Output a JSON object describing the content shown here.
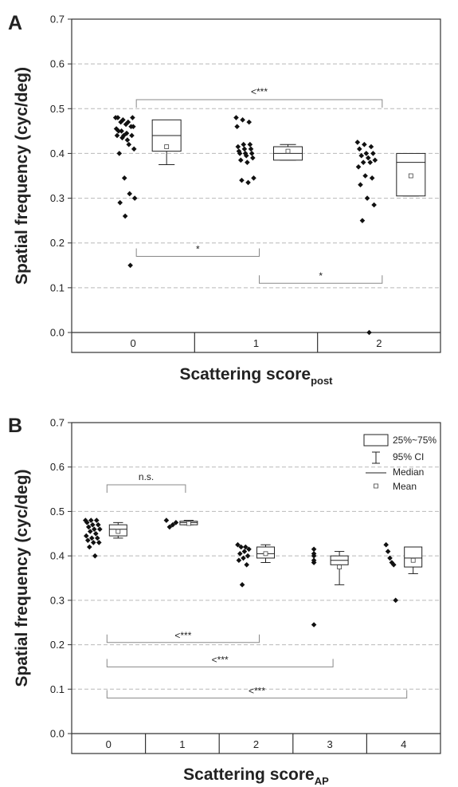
{
  "chart_data": [
    {
      "type": "scatter",
      "panel_label": "A",
      "ylabel": "Spatial frequency (cyc/deg)",
      "xlabel": "Scattering score",
      "xlabel_sub": "post",
      "ylim": [
        0,
        0.7
      ],
      "yticks": [
        "0.0",
        "0.1",
        "0.2",
        "0.3",
        "0.4",
        "0.5",
        "0.6",
        "0.7"
      ],
      "categories": [
        "0",
        "1",
        "2"
      ],
      "grid": "dashed horizontal",
      "groups": [
        {
          "category": "0",
          "points": [
            0.48,
            0.47,
            0.465,
            0.46,
            0.455,
            0.45,
            0.445,
            0.44,
            0.44,
            0.435,
            0.43,
            0.48,
            0.48,
            0.475,
            0.47,
            0.46,
            0.45,
            0.44,
            0.42,
            0.41,
            0.4,
            0.345,
            0.31,
            0.3,
            0.29,
            0.26,
            0.15
          ],
          "box": {
            "q1": 0.405,
            "q3": 0.475,
            "median": 0.44,
            "mean": 0.415,
            "ci_low": 0.375,
            "ci_high": 0.455
          }
        },
        {
          "category": "1",
          "points": [
            0.48,
            0.475,
            0.47,
            0.46,
            0.42,
            0.42,
            0.415,
            0.41,
            0.41,
            0.405,
            0.4,
            0.4,
            0.4,
            0.395,
            0.39,
            0.385,
            0.38,
            0.345,
            0.34,
            0.335
          ],
          "box": {
            "q1": 0.385,
            "q3": 0.415,
            "median": 0.4,
            "mean": 0.405,
            "ci_low": 0.385,
            "ci_high": 0.42
          }
        },
        {
          "category": "2",
          "points": [
            0.425,
            0.42,
            0.415,
            0.41,
            0.4,
            0.4,
            0.395,
            0.39,
            0.385,
            0.38,
            0.38,
            0.37,
            0.35,
            0.345,
            0.33,
            0.3,
            0.285,
            0.25,
            0.0
          ],
          "box": {
            "q1": 0.305,
            "q3": 0.4,
            "median": 0.38,
            "mean": 0.35,
            "ci_low": 0.305,
            "ci_high": 0.39
          }
        }
      ],
      "comparisons": [
        {
          "from": "0",
          "to": "2",
          "y": 0.52,
          "label": "<***",
          "direction": "down"
        },
        {
          "from": "0",
          "to": "1",
          "y": 0.17,
          "label": "*",
          "direction": "up"
        },
        {
          "from": "1",
          "to": "2",
          "y": 0.11,
          "label": "*",
          "direction": "up"
        }
      ]
    },
    {
      "type": "scatter",
      "panel_label": "B",
      "ylabel": "Spatial frequency (cyc/deg)",
      "xlabel": "Scattering score",
      "xlabel_sub": "AP",
      "ylim": [
        0,
        0.7
      ],
      "yticks": [
        "0.0",
        "0.1",
        "0.2",
        "0.3",
        "0.4",
        "0.5",
        "0.6",
        "0.7"
      ],
      "categories": [
        "0",
        "1",
        "2",
        "3",
        "4"
      ],
      "grid": "dashed horizontal",
      "legend": {
        "position": "top-right",
        "items": [
          "25%~75%",
          "95% CI",
          "Median",
          "Mean"
        ]
      },
      "groups": [
        {
          "category": "0",
          "points": [
            0.48,
            0.48,
            0.48,
            0.475,
            0.47,
            0.47,
            0.465,
            0.46,
            0.46,
            0.455,
            0.45,
            0.445,
            0.44,
            0.44,
            0.435,
            0.43,
            0.43,
            0.42,
            0.4
          ],
          "box": {
            "q1": 0.445,
            "q3": 0.47,
            "median": 0.46,
            "mean": 0.455,
            "ci_low": 0.44,
            "ci_high": 0.475
          }
        },
        {
          "category": "1",
          "points": [
            0.48,
            0.475,
            0.47,
            0.465
          ],
          "box": {
            "q1": 0.47,
            "q3": 0.478,
            "median": 0.475,
            "mean": 0.473,
            "ci_low": 0.47,
            "ci_high": 0.48
          }
        },
        {
          "category": "2",
          "points": [
            0.425,
            0.42,
            0.42,
            0.415,
            0.41,
            0.405,
            0.4,
            0.395,
            0.39,
            0.38,
            0.335
          ],
          "box": {
            "q1": 0.395,
            "q3": 0.42,
            "median": 0.405,
            "mean": 0.405,
            "ci_low": 0.385,
            "ci_high": 0.425
          }
        },
        {
          "category": "3",
          "points": [
            0.415,
            0.405,
            0.4,
            0.39,
            0.385,
            0.385,
            0.245
          ],
          "box": {
            "q1": 0.38,
            "q3": 0.4,
            "median": 0.39,
            "mean": 0.375,
            "ci_low": 0.335,
            "ci_high": 0.41
          }
        },
        {
          "category": "4",
          "points": [
            0.425,
            0.41,
            0.395,
            0.385,
            0.38,
            0.3
          ],
          "box": {
            "q1": 0.375,
            "q3": 0.42,
            "median": 0.395,
            "mean": 0.39,
            "ci_low": 0.36,
            "ci_high": 0.415
          }
        }
      ],
      "comparisons": [
        {
          "from": "0",
          "to": "1",
          "y": 0.56,
          "label": "n.s.",
          "direction": "down"
        },
        {
          "from": "0",
          "to": "2",
          "y": 0.205,
          "label": "<***",
          "direction": "up"
        },
        {
          "from": "0",
          "to": "3",
          "y": 0.15,
          "label": "<***",
          "direction": "up"
        },
        {
          "from": "0",
          "to": "4",
          "y": 0.08,
          "label": "<***",
          "direction": "up"
        }
      ]
    }
  ]
}
